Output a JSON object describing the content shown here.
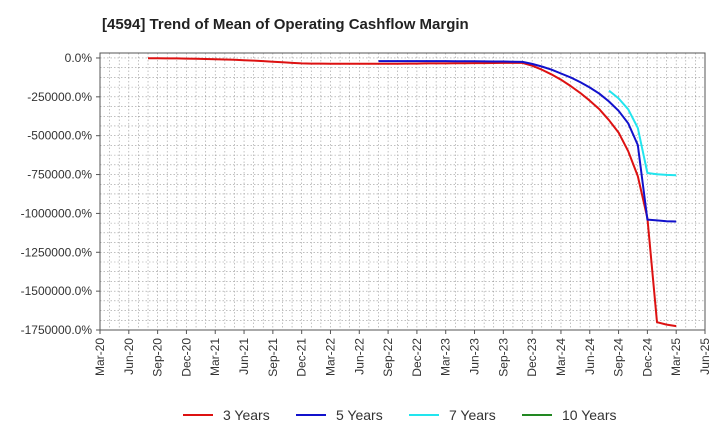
{
  "chart_data": {
    "type": "line",
    "title": "[4594]  Trend of Mean of Operating Cashflow Margin",
    "xlabel": "",
    "ylabel": "",
    "x_ticks": [
      "Mar-20",
      "Jun-20",
      "Sep-20",
      "Dec-20",
      "Mar-21",
      "Jun-21",
      "Sep-21",
      "Dec-21",
      "Mar-22",
      "Jun-22",
      "Sep-22",
      "Dec-22",
      "Mar-23",
      "Jun-23",
      "Sep-23",
      "Dec-23",
      "Mar-24",
      "Jun-24",
      "Sep-24",
      "Dec-24",
      "Mar-25",
      "Jun-25"
    ],
    "y_ticks": [
      "0.0%",
      "-250000.0%",
      "-500000.0%",
      "-750000.0%",
      "-1000000.0%",
      "-1250000.0%",
      "-1500000.0%",
      "-1750000.0%"
    ],
    "y_tick_values": [
      0,
      -250000,
      -500000,
      -750000,
      -1000000,
      -1250000,
      -1500000,
      -1750000
    ],
    "ylim": [
      -1750000,
      0
    ],
    "xlim": [
      "Mar-20",
      "Jun-25"
    ],
    "grid": true,
    "legend_position": "bottom",
    "series": [
      {
        "name": "3 Years",
        "color": "#dd1111",
        "x": [
          "Aug-20",
          "Sep-20",
          "Oct-20",
          "Nov-20",
          "Dec-20",
          "Jan-21",
          "Feb-21",
          "Mar-21",
          "Apr-21",
          "May-21",
          "Jun-21",
          "Jul-21",
          "Aug-21",
          "Sep-21",
          "Oct-21",
          "Nov-21",
          "Dec-21",
          "Jan-22",
          "Feb-22",
          "Mar-22",
          "Apr-22",
          "May-22",
          "Jun-22",
          "Jul-22",
          "Aug-22",
          "Sep-22",
          "Oct-22",
          "Nov-22",
          "Dec-22",
          "Jan-23",
          "Feb-23",
          "Mar-23",
          "Apr-23",
          "May-23",
          "Jun-23",
          "Jul-23",
          "Aug-23",
          "Sep-23",
          "Oct-23",
          "Nov-23",
          "Dec-23",
          "Jan-24",
          "Feb-24",
          "Mar-24",
          "Apr-24",
          "May-24",
          "Jun-24",
          "Jul-24",
          "Aug-24",
          "Sep-24",
          "Oct-24",
          "Nov-24",
          "Dec-24",
          "Jan-25",
          "Feb-25",
          "Mar-25"
        ],
        "values": [
          -2000,
          -2000,
          -2500,
          -3000,
          -4000,
          -5000,
          -6500,
          -8000,
          -10000,
          -12000,
          -14000,
          -17000,
          -20000,
          -24000,
          -28000,
          -32000,
          -35000,
          -36000,
          -36500,
          -37000,
          -37000,
          -37000,
          -37500,
          -37500,
          -37500,
          -37000,
          -37000,
          -36500,
          -36000,
          -35000,
          -35000,
          -35000,
          -34000,
          -34000,
          -33000,
          -33000,
          -32500,
          -32000,
          -32000,
          -32000,
          -50000,
          -75000,
          -105000,
          -140000,
          -180000,
          -225000,
          -275000,
          -330000,
          -400000,
          -480000,
          -600000,
          -760000,
          -1030000,
          -1700000,
          -1715000,
          -1725000
        ]
      },
      {
        "name": "5 Years",
        "color": "#1111cc",
        "x": [
          "Aug-22",
          "Sep-22",
          "Oct-22",
          "Nov-22",
          "Dec-22",
          "Jan-23",
          "Feb-23",
          "Mar-23",
          "Apr-23",
          "May-23",
          "Jun-23",
          "Jul-23",
          "Aug-23",
          "Sep-23",
          "Oct-23",
          "Nov-23",
          "Dec-23",
          "Jan-24",
          "Feb-24",
          "Mar-24",
          "Apr-24",
          "May-24",
          "Jun-24",
          "Jul-24",
          "Aug-24",
          "Sep-24",
          "Oct-24",
          "Nov-24",
          "Dec-24",
          "Jan-25",
          "Feb-25",
          "Mar-25"
        ],
        "values": [
          -20000,
          -20000,
          -20000,
          -20000,
          -20000,
          -20000,
          -20000,
          -20000,
          -20500,
          -21000,
          -21500,
          -22000,
          -22500,
          -23000,
          -24000,
          -25000,
          -38000,
          -55000,
          -75000,
          -100000,
          -125000,
          -155000,
          -190000,
          -230000,
          -280000,
          -340000,
          -420000,
          -560000,
          -1040000,
          -1045000,
          -1050000,
          -1052000
        ]
      },
      {
        "name": "7 Years",
        "color": "#22e5ee",
        "x": [
          "Aug-24",
          "Sep-24",
          "Oct-24",
          "Nov-24",
          "Dec-24",
          "Jan-25",
          "Feb-25",
          "Mar-25"
        ],
        "values": [
          -210000,
          -260000,
          -330000,
          -450000,
          -740000,
          -748000,
          -752000,
          -755000
        ]
      },
      {
        "name": "10 Years",
        "color": "#228822",
        "x": [],
        "values": []
      }
    ]
  }
}
